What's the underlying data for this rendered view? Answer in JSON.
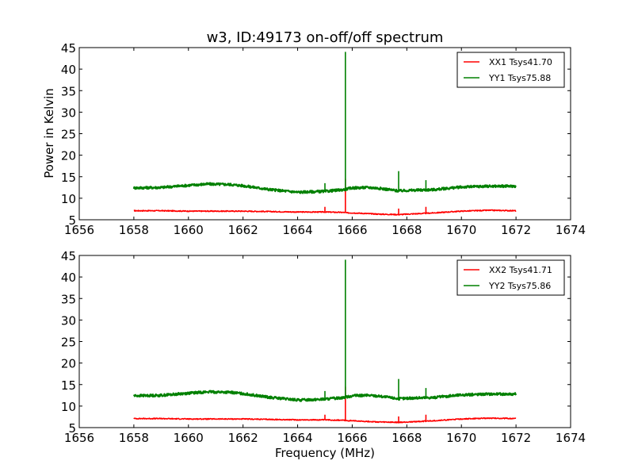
{
  "title": "w3, ID:49173 on-off/off spectrum",
  "ylabel": "Power in Kelvin",
  "xlabel": "Frequency (MHz)",
  "chart_data": [
    {
      "type": "line",
      "xlim": [
        1656,
        1674
      ],
      "ylim": [
        5,
        45
      ],
      "xticks": [
        1656,
        1658,
        1660,
        1662,
        1664,
        1666,
        1668,
        1670,
        1672,
        1674
      ],
      "yticks": [
        5,
        10,
        15,
        20,
        25,
        30,
        35,
        40,
        45
      ],
      "legend_position": "top-right",
      "series": [
        {
          "name": "XX1 Tsys41.70",
          "color": "#ff0000",
          "x": [
            1658,
            1659,
            1660,
            1661,
            1662,
            1663,
            1664,
            1665,
            1665.7,
            1665.8,
            1666,
            1667,
            1667.7,
            1668,
            1668.7,
            1669,
            1670,
            1671,
            1672
          ],
          "y": [
            7.1,
            7.1,
            7.0,
            7.0,
            7.0,
            6.9,
            6.8,
            6.8,
            6.7,
            6.6,
            6.6,
            6.3,
            6.2,
            6.3,
            6.5,
            6.6,
            7.0,
            7.2,
            7.1
          ],
          "spikes": [
            [
              1665.0,
              8.0
            ],
            [
              1665.75,
              14.5
            ],
            [
              1667.7,
              7.6
            ],
            [
              1668.7,
              8.0
            ]
          ]
        },
        {
          "name": "YY1 Tsys75.88",
          "color": "#008000",
          "x": [
            1658,
            1659,
            1660,
            1660.7,
            1661.5,
            1662,
            1663,
            1664,
            1665,
            1665.7,
            1666,
            1666.6,
            1667,
            1667.7,
            1668,
            1669,
            1670,
            1671,
            1672
          ],
          "y": [
            12.4,
            12.5,
            13.0,
            13.3,
            13.2,
            12.9,
            12.0,
            11.4,
            11.6,
            12.0,
            12.4,
            12.5,
            12.3,
            11.7,
            11.8,
            12.0,
            12.6,
            12.8,
            12.8
          ],
          "spikes": [
            [
              1665.0,
              13.5
            ],
            [
              1665.75,
              44.0
            ],
            [
              1667.7,
              16.3
            ],
            [
              1668.7,
              14.2
            ]
          ]
        }
      ]
    },
    {
      "type": "line",
      "xlim": [
        1656,
        1674
      ],
      "ylim": [
        5,
        45
      ],
      "xticks": [
        1656,
        1658,
        1660,
        1662,
        1664,
        1666,
        1668,
        1670,
        1672,
        1674
      ],
      "yticks": [
        5,
        10,
        15,
        20,
        25,
        30,
        35,
        40,
        45
      ],
      "legend_position": "top-right",
      "series": [
        {
          "name": "XX2 Tsys41.71",
          "color": "#ff0000",
          "x": [
            1658,
            1659,
            1660,
            1661,
            1662,
            1663,
            1664,
            1665,
            1665.7,
            1665.8,
            1666,
            1667,
            1667.7,
            1668,
            1668.7,
            1669,
            1670,
            1671,
            1672
          ],
          "y": [
            7.1,
            7.1,
            7.0,
            7.0,
            7.0,
            6.9,
            6.8,
            6.8,
            6.7,
            6.6,
            6.6,
            6.3,
            6.2,
            6.3,
            6.5,
            6.6,
            7.0,
            7.2,
            7.1
          ],
          "spikes": [
            [
              1665.0,
              8.0
            ],
            [
              1665.75,
              14.5
            ],
            [
              1667.7,
              7.6
            ],
            [
              1668.7,
              8.0
            ]
          ]
        },
        {
          "name": "YY2 Tsys75.86",
          "color": "#008000",
          "x": [
            1658,
            1659,
            1660,
            1660.7,
            1661.5,
            1662,
            1663,
            1664,
            1665,
            1665.7,
            1666,
            1666.6,
            1667,
            1667.7,
            1668,
            1669,
            1670,
            1671,
            1672
          ],
          "y": [
            12.4,
            12.5,
            13.0,
            13.3,
            13.2,
            12.9,
            12.0,
            11.4,
            11.6,
            12.0,
            12.4,
            12.5,
            12.3,
            11.7,
            11.8,
            12.0,
            12.6,
            12.8,
            12.8
          ],
          "spikes": [
            [
              1665.0,
              13.5
            ],
            [
              1665.75,
              44.0
            ],
            [
              1667.7,
              16.3
            ],
            [
              1668.7,
              14.2
            ]
          ]
        }
      ]
    }
  ]
}
